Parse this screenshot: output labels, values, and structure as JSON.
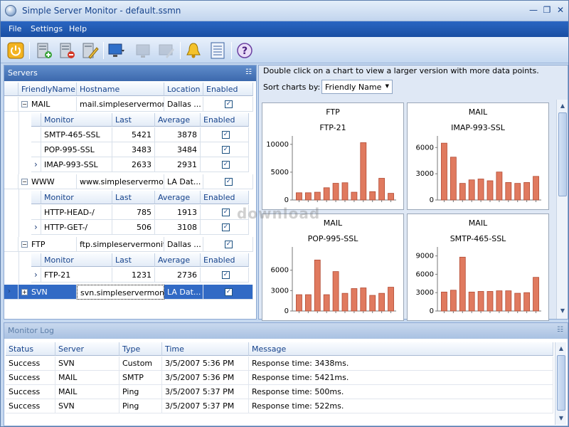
{
  "window": {
    "title": "Simple Server Monitor - default.ssmn"
  },
  "menu": {
    "items": [
      "File",
      "Settings",
      "Help"
    ]
  },
  "toolbar": {
    "icons": [
      "power-icon",
      "add-server-icon",
      "remove-server-icon",
      "edit-server-icon",
      "monitor-icon",
      "monitor-disabled-icon",
      "monitor-edit-disabled-icon",
      "bell-icon",
      "list-icon",
      "help-icon"
    ]
  },
  "servers_panel": {
    "title": "Servers",
    "columns": [
      "FriendlyName",
      "Hostname",
      "Location",
      "Enabled"
    ],
    "monitor_columns": [
      "Monitor",
      "Last",
      "Average",
      "Enabled"
    ],
    "servers": [
      {
        "name": "MAIL",
        "host": "mail.simpleservermoni...",
        "location": "Dallas ...",
        "enabled": true,
        "monitors": [
          {
            "name": "SMTP-465-SSL",
            "last": "5421",
            "average": "3878",
            "enabled": true
          },
          {
            "name": "POP-995-SSL",
            "last": "3483",
            "average": "3484",
            "enabled": true
          },
          {
            "name": "IMAP-993-SSL",
            "last": "2633",
            "average": "2931",
            "enabled": true
          }
        ]
      },
      {
        "name": "WWW",
        "host": "www.simpleservermo...",
        "location": "LA Dat...",
        "enabled": true,
        "monitors": [
          {
            "name": "HTTP-HEAD-/",
            "last": "785",
            "average": "1913",
            "enabled": true
          },
          {
            "name": "HTTP-GET-/",
            "last": "506",
            "average": "3108",
            "enabled": true
          }
        ]
      },
      {
        "name": "FTP",
        "host": "ftp.simpleservermonit...",
        "location": "Dallas ...",
        "enabled": true,
        "monitors": [
          {
            "name": "FTP-21",
            "last": "1231",
            "average": "2736",
            "enabled": true
          }
        ]
      },
      {
        "name": "SVN",
        "host": "svn.simpleservermoni...",
        "location": "LA Dat...",
        "enabled": true,
        "monitors": []
      }
    ]
  },
  "charts_panel": {
    "hint": "Double click on a chart to view a larger version with more data points.",
    "sort_label": "Sort charts by:",
    "sort_value": "Friendly Name"
  },
  "chart_data": [
    {
      "type": "bar",
      "title": "FTP",
      "subtitle": "FTP-21",
      "ylim": [
        0,
        11000
      ],
      "yticks": [
        0,
        5000,
        10000
      ],
      "values": [
        1300,
        1300,
        1400,
        2200,
        3000,
        3100,
        1400,
        10300,
        1500,
        3900,
        1200
      ]
    },
    {
      "type": "bar",
      "title": "MAIL",
      "subtitle": "IMAP-993-SSL",
      "ylim": [
        0,
        7000
      ],
      "yticks": [
        0,
        3000,
        6000
      ],
      "values": [
        6500,
        4900,
        1900,
        2300,
        2400,
        2200,
        3200,
        2000,
        1900,
        2000,
        2700
      ]
    },
    {
      "type": "bar",
      "title": "MAIL",
      "subtitle": "POP-995-SSL",
      "ylim": [
        0,
        9000
      ],
      "yticks": [
        0,
        3000,
        6000
      ],
      "values": [
        2400,
        2400,
        7500,
        2400,
        5800,
        2600,
        3300,
        3400,
        2300,
        2600,
        3500
      ]
    },
    {
      "type": "bar",
      "title": "MAIL",
      "subtitle": "SMTP-465-SSL",
      "ylim": [
        0,
        10000
      ],
      "yticks": [
        0,
        3000,
        6000,
        9000
      ],
      "values": [
        3100,
        3400,
        8800,
        3100,
        3200,
        3200,
        3300,
        3300,
        2900,
        3000,
        5500
      ]
    }
  ],
  "log_panel": {
    "title": "Monitor Log",
    "columns": [
      "Status",
      "Server",
      "Type",
      "Time",
      "Message"
    ],
    "rows": [
      [
        "Success",
        "SVN",
        "Custom",
        "3/5/2007 5:36 PM",
        "Response time: 3438ms."
      ],
      [
        "Success",
        "MAIL",
        "SMTP",
        "3/5/2007 5:36 PM",
        "Response time: 5421ms."
      ],
      [
        "Success",
        "MAIL",
        "Ping",
        "3/5/2007 5:37 PM",
        "Response time: 500ms."
      ],
      [
        "Success",
        "SVN",
        "Ping",
        "3/5/2007 5:37 PM",
        "Response time: 522ms."
      ]
    ]
  },
  "colors": {
    "bar": "#e07a5f",
    "bar_stroke": "#b24a33",
    "selection": "#316ac5",
    "menubar": "#1f56ad"
  },
  "watermark": "download"
}
